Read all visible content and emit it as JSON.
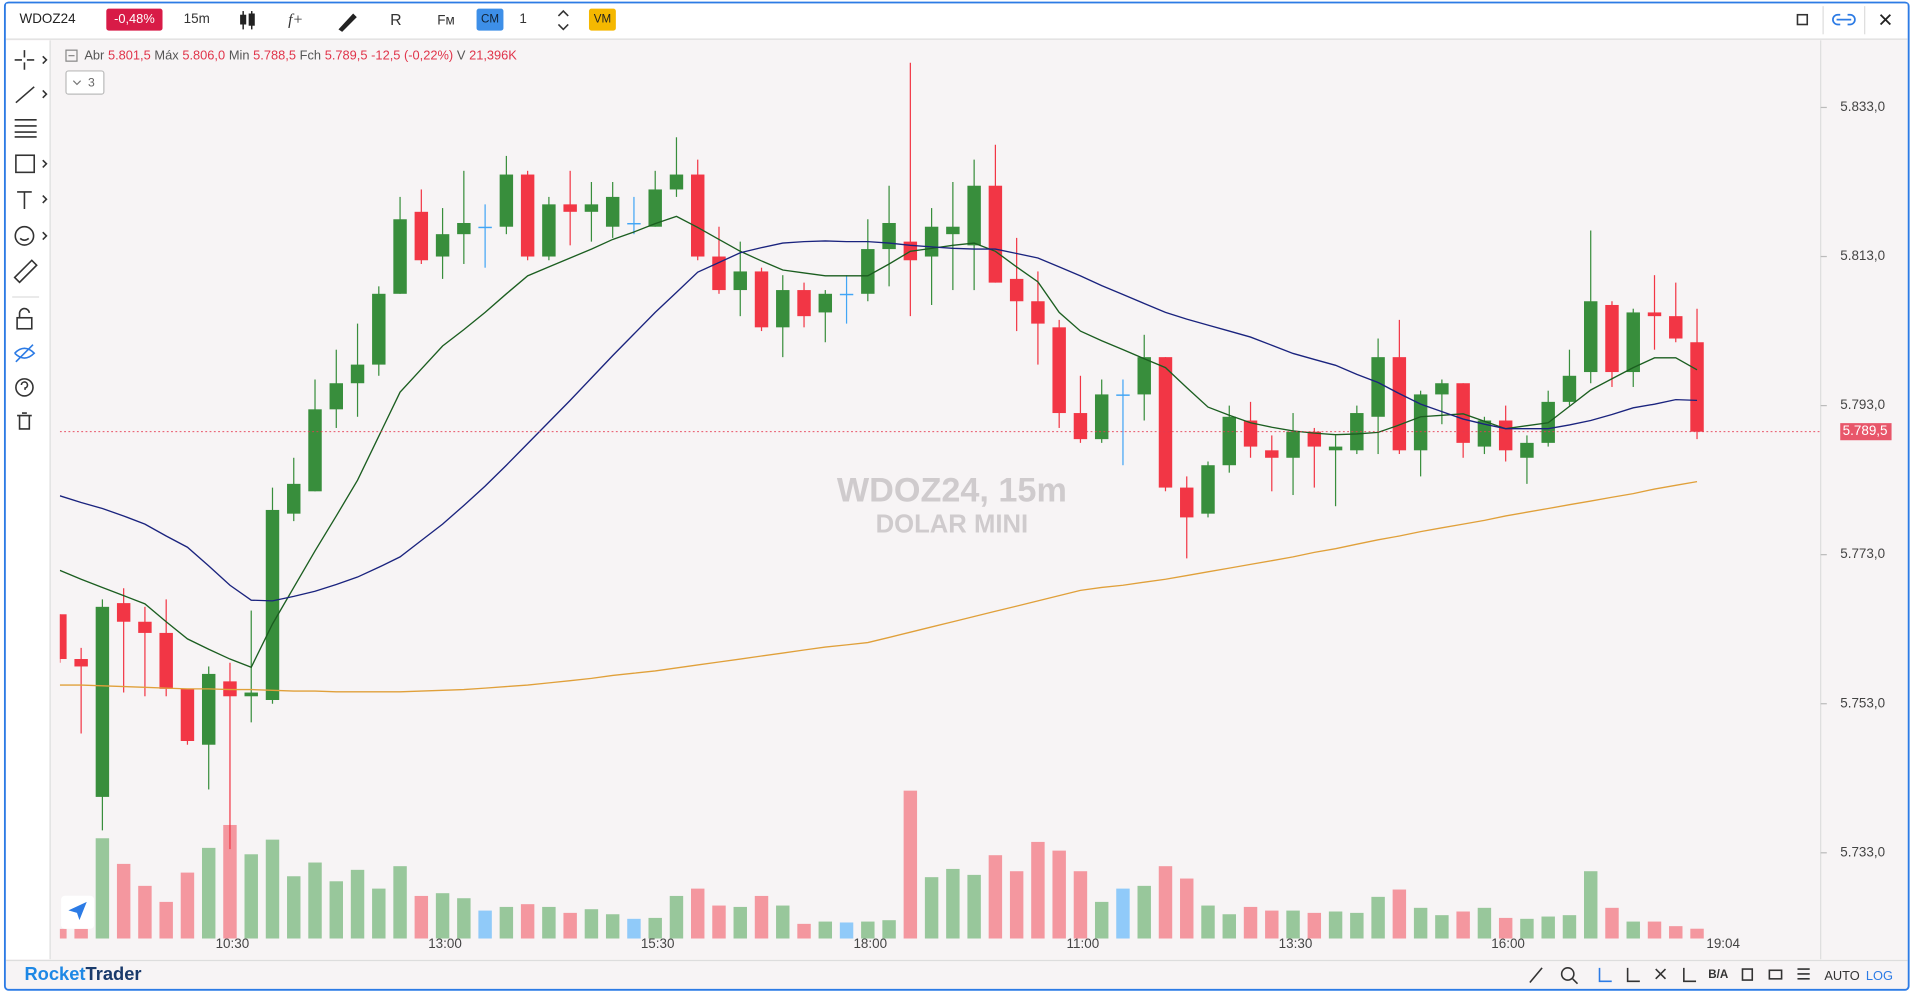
{
  "toolbar": {
    "symbol": "WDOZ24",
    "change": "-0,48%",
    "timeframe": "15m",
    "fm": "Fм",
    "cm": "CM",
    "quantity": "1",
    "vm": "VM"
  },
  "legend": {
    "open_label": "Abr",
    "open": "5.801,5",
    "high_label": "Máx",
    "high": "5.806,0",
    "low_label": "Min",
    "low": "5.788,5",
    "close_label": "Fch",
    "close": "5.789,5",
    "change": "-12,5 (-0,22%)",
    "volume_label": "V",
    "volume": "21,396K",
    "indicators_count": "3"
  },
  "watermark": {
    "title": "WDOZ24, 15m",
    "subtitle": "DOLAR MINI"
  },
  "footer": {
    "brand_a": "Rocket",
    "brand_b": "Trader",
    "ba": "B/A",
    "auto": "AUTO",
    "log": "LOG"
  },
  "chart_data": {
    "type": "candlestick",
    "categories": [
      null,
      null,
      null,
      null,
      null,
      null,
      null,
      null,
      "10:30",
      null,
      null,
      null,
      null,
      null,
      null,
      null,
      null,
      null,
      "13:00",
      null,
      null,
      null,
      null,
      null,
      null,
      null,
      null,
      null,
      "15:30",
      null,
      null,
      null,
      null,
      null,
      null,
      null,
      null,
      null,
      "18:00",
      null,
      null,
      null,
      null,
      null,
      null,
      null,
      null,
      null,
      "11:00",
      null,
      null,
      null,
      null,
      null,
      null,
      null,
      null,
      null,
      "13:30",
      null,
      null,
      null,
      null,
      null,
      null,
      null,
      null,
      null,
      "16:00",
      null,
      null,
      null,
      null,
      null,
      null,
      null,
      null,
      null
    ],
    "x_end_label": "19:04",
    "open": [
      5765,
      5759,
      5740.5,
      5766.5,
      5764,
      5762.5,
      5755,
      5747.5,
      5756,
      5754,
      5753.5,
      5778.5,
      5781.5,
      5792.5,
      5796,
      5798.5,
      5808,
      5819,
      5813,
      5816,
      5817,
      5817,
      5824,
      5813,
      5820,
      5819,
      5817,
      5817.5,
      5817,
      5822,
      5824,
      5813,
      5808.5,
      5811,
      5803.5,
      5808.5,
      5805.5,
      5808,
      5808,
      5814,
      5815,
      5813,
      5816,
      5814.5,
      5822.5,
      5810,
      5807,
      5803.5,
      5792,
      5788.5,
      5794.5,
      5794.5,
      5799.5,
      5782,
      5778.5,
      5785,
      5791,
      5787,
      5786,
      5789.5,
      5787,
      5787,
      5791.5,
      5799.5,
      5787,
      5794.5,
      5796,
      5787.5,
      5791,
      5786,
      5788,
      5793.5,
      5797.5,
      5806.5,
      5797.5,
      5805.5,
      5805,
      5801.5
    ],
    "high": [
      5765,
      5760.5,
      5767,
      5768.5,
      5766,
      5767,
      5755,
      5758,
      5758.5,
      5765.5,
      5782,
      5786,
      5796.5,
      5800.5,
      5804,
      5809,
      5821,
      5822,
      5819.5,
      5824.5,
      5820,
      5826.5,
      5824.5,
      5821,
      5824.5,
      5823,
      5823,
      5821,
      5824.5,
      5829,
      5826,
      5817,
      5815,
      5811.5,
      5810.5,
      5809.5,
      5808.5,
      5810.5,
      5818,
      5822.5,
      5839,
      5819.5,
      5823,
      5826,
      5828,
      5815.5,
      5811,
      5804.5,
      5797,
      5796.5,
      5796.5,
      5802.5,
      5799.5,
      5783.5,
      5785.5,
      5793,
      5793.5,
      5789,
      5792,
      5790,
      5789,
      5793,
      5802,
      5804.5,
      5795,
      5796.5,
      5796,
      5791.5,
      5793,
      5789,
      5795,
      5800.5,
      5816.5,
      5807,
      5806,
      5810.5,
      5809.5,
      5806
    ],
    "low": [
      5758.5,
      5749,
      5736,
      5754.5,
      5754,
      5754,
      5747.5,
      5741.5,
      5733.5,
      5750.5,
      5753,
      5777.5,
      5781.5,
      5790,
      5791.5,
      5797,
      5808,
      5812,
      5810,
      5812,
      5811.5,
      5816,
      5812.5,
      5812.5,
      5814.5,
      5815,
      5815.5,
      5816,
      5817,
      5821,
      5812.5,
      5808,
      5805,
      5803,
      5799.5,
      5803.5,
      5801.5,
      5804,
      5807,
      5809,
      5805,
      5806.5,
      5808.5,
      5808.5,
      5809.5,
      5803,
      5798.5,
      5790,
      5788,
      5788,
      5785,
      5791,
      5781.5,
      5772.5,
      5778,
      5784,
      5786,
      5781.5,
      5781,
      5782,
      5779.5,
      5786.5,
      5786.5,
      5786.5,
      5783.5,
      5790.5,
      5786,
      5786.5,
      5785.5,
      5782.5,
      5787.5,
      5793,
      5796,
      5795.5,
      5795.5,
      5800.5,
      5801.5,
      5788.5
    ],
    "close": [
      5759,
      5758,
      5766,
      5764,
      5762.5,
      5755,
      5748,
      5757,
      5754,
      5754.5,
      5779,
      5782.5,
      5792.5,
      5796,
      5798.5,
      5808,
      5818,
      5812.5,
      5816,
      5817.5,
      5817,
      5824,
      5813,
      5820,
      5819,
      5820,
      5821,
      5817.5,
      5822,
      5824,
      5813,
      5808.5,
      5811,
      5803.5,
      5808.5,
      5805,
      5808,
      5808,
      5814,
      5817.5,
      5812.5,
      5817,
      5817,
      5822.5,
      5809.5,
      5807,
      5804,
      5792,
      5788.5,
      5794.5,
      5794.5,
      5799.5,
      5782,
      5778,
      5785,
      5791.5,
      5787.5,
      5786,
      5789.5,
      5787.5,
      5787.5,
      5792,
      5799.5,
      5787,
      5794.5,
      5796,
      5788,
      5791,
      5787,
      5788,
      5793.5,
      5797,
      5807,
      5797.5,
      5805.5,
      5805,
      5802,
      5789.5
    ],
    "volume": [
      21,
      21,
      219,
      163,
      115,
      80,
      144,
      198,
      248,
      184,
      216,
      136,
      166,
      125,
      150,
      109,
      158,
      93,
      99,
      88,
      61,
      69,
      75,
      69,
      56,
      64,
      53,
      43,
      45,
      93,
      109,
      72,
      69,
      93,
      72,
      32,
      37,
      35,
      37,
      40,
      323,
      134,
      152,
      139,
      182,
      147,
      211,
      192,
      147,
      80,
      109,
      115,
      158,
      131,
      72,
      53,
      69,
      61,
      61,
      56,
      59,
      56,
      91,
      107,
      67,
      51,
      59,
      67,
      45,
      43,
      48,
      51,
      147,
      67,
      37,
      37,
      27,
      21.396
    ],
    "series": [
      {
        "color": "#1b5e20",
        "values": [
          5770.9,
          5769.7,
          5768.6,
          5767.5,
          5766.4,
          5764,
          5761.7,
          5760.3,
          5759,
          5757.9,
          5763.7,
          5768.6,
          5773.5,
          5778.2,
          5783,
          5788.9,
          5794.8,
          5797.9,
          5801,
          5803.2,
          5805.5,
          5808,
          5810.4,
          5811.6,
          5812.8,
          5814,
          5815.3,
          5816.3,
          5817.4,
          5818.4,
          5816.9,
          5815.3,
          5813.7,
          5812.4,
          5811.2,
          5810.8,
          5810.4,
          5810.4,
          5810.4,
          5812,
          5813.7,
          5814.1,
          5814.5,
          5814.8,
          5813.7,
          5811.6,
          5809.6,
          5805.5,
          5803,
          5801.7,
          5800.5,
          5799.3,
          5798.1,
          5795.4,
          5792.8,
          5791.7,
          5790.7,
          5790.1,
          5789.6,
          5789.3,
          5789.1,
          5789.2,
          5789.4,
          5790.4,
          5791.5,
          5791.7,
          5791.9,
          5790.9,
          5789.9,
          5790.3,
          5790.7,
          5792.9,
          5795.1,
          5796.6,
          5798.1,
          5799.4,
          5799.4,
          5797.8
        ]
      },
      {
        "color": "#1a237e",
        "values": [
          5780.9,
          5780,
          5779.2,
          5778.2,
          5777.1,
          5775.5,
          5774,
          5771.5,
          5768.9,
          5766.9,
          5766.8,
          5767.4,
          5768.1,
          5769,
          5770,
          5771.3,
          5772.7,
          5774.9,
          5777.1,
          5779.6,
          5782.2,
          5785,
          5787.9,
          5790.8,
          5793.7,
          5796.7,
          5799.7,
          5802.6,
          5805.5,
          5808.2,
          5810.9,
          5812.2,
          5813.5,
          5814.2,
          5814.8,
          5815,
          5815.1,
          5815,
          5815,
          5814.8,
          5814.5,
          5814.3,
          5814.1,
          5814,
          5814,
          5813.4,
          5812.8,
          5811.6,
          5810.4,
          5809.1,
          5807.9,
          5806.7,
          5805.5,
          5804.6,
          5803.8,
          5803,
          5802.2,
          5801.1,
          5800,
          5799.2,
          5798.4,
          5797.2,
          5796.1,
          5794.6,
          5793.2,
          5792.2,
          5791.2,
          5790.5,
          5789.9,
          5789.9,
          5789.9,
          5790.4,
          5791,
          5791.8,
          5792.7,
          5793.2,
          5793.8,
          5793.7
        ]
      },
      {
        "color": "#e0a03a",
        "values": [
          5755.5,
          5755.5,
          5755.4,
          5755.3,
          5755.2,
          5755.1,
          5755,
          5755,
          5754.9,
          5754.9,
          5754.8,
          5754.7,
          5754.7,
          5754.6,
          5754.6,
          5754.6,
          5754.6,
          5754.7,
          5754.8,
          5754.9,
          5755.1,
          5755.3,
          5755.5,
          5755.8,
          5756.1,
          5756.4,
          5756.8,
          5757.1,
          5757.4,
          5757.8,
          5758.2,
          5758.6,
          5759,
          5759.4,
          5759.8,
          5760.2,
          5760.6,
          5760.9,
          5761.2,
          5761.9,
          5762.6,
          5763.3,
          5764,
          5764.7,
          5765.4,
          5766.1,
          5766.8,
          5767.5,
          5768.2,
          5768.6,
          5768.9,
          5769.3,
          5769.7,
          5770.2,
          5770.7,
          5771.2,
          5771.7,
          5772.2,
          5772.7,
          5773.3,
          5773.8,
          5774.4,
          5775,
          5775.5,
          5776.1,
          5776.6,
          5777.1,
          5777.6,
          5778.2,
          5778.7,
          5779.2,
          5779.7,
          5780.2,
          5780.7,
          5781.2,
          5781.8,
          5782.3,
          5782.8
        ]
      }
    ],
    "up_color": "#388e3c",
    "down_color": "#f23645",
    "flat_color": "#42a5f5",
    "volume_up_color": "#98c79b",
    "volume_down_color": "#f4979f",
    "volume_flat_color": "#90caf9",
    "ylim": [
      5721.5,
      5842
    ],
    "yticks": [
      {
        "value": 5733,
        "label": "5.733,0"
      },
      {
        "value": 5753,
        "label": "5.753,0"
      },
      {
        "value": 5773,
        "label": "5.773,0"
      },
      {
        "value": 5793,
        "label": "5.793,0"
      },
      {
        "value": 5813,
        "label": "5.813,0"
      },
      {
        "value": 5833,
        "label": "5.833,0"
      }
    ],
    "last_price": {
      "value": 5789.5,
      "label": "5.789,5"
    },
    "grid": false
  }
}
